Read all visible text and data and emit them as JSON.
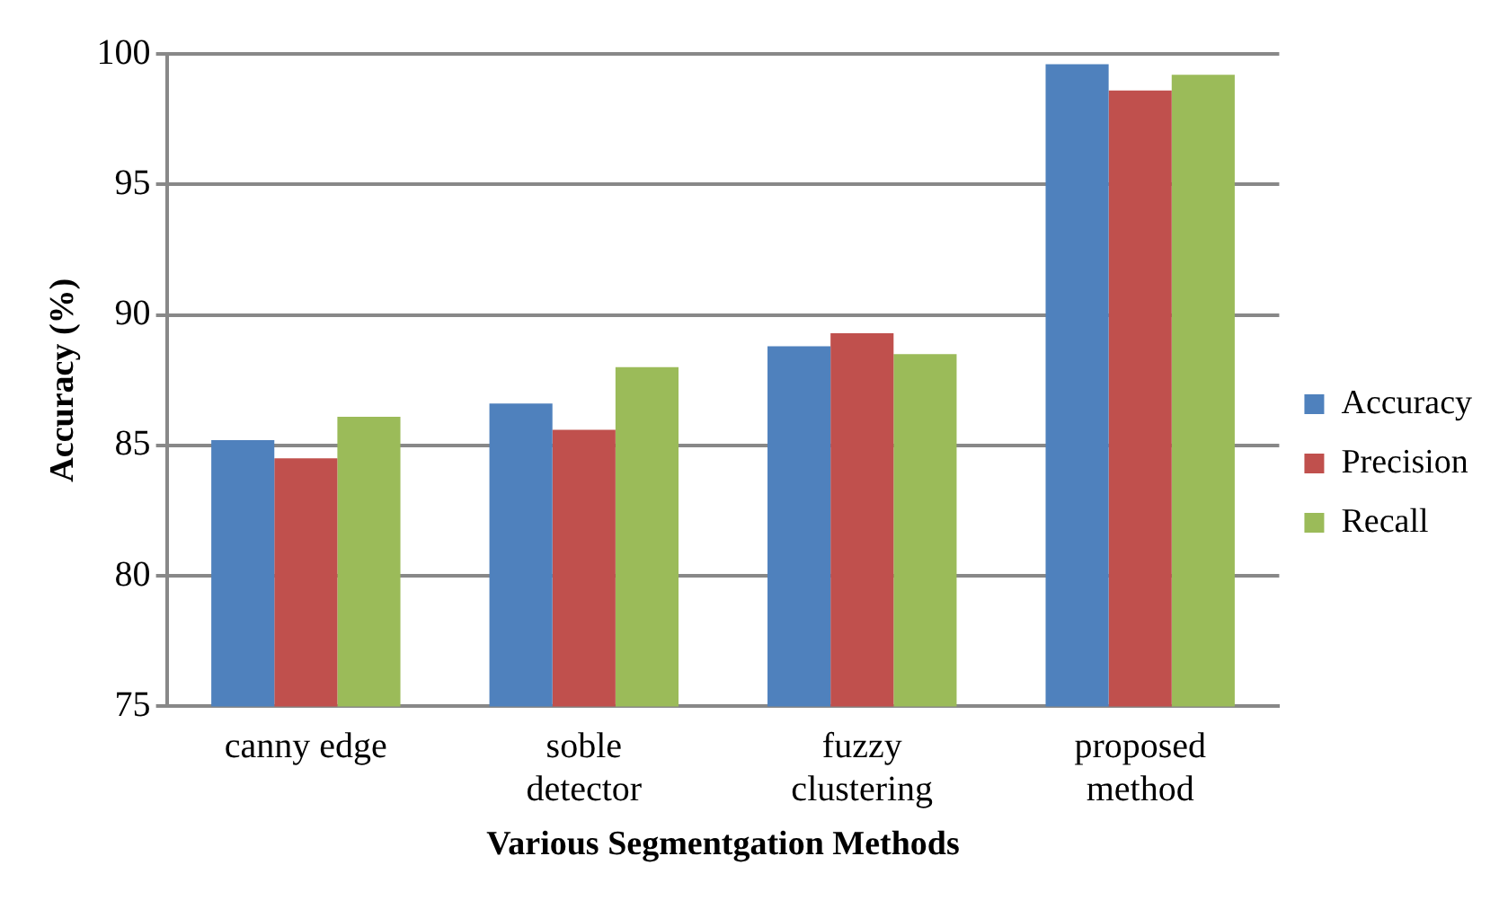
{
  "chart_data": {
    "type": "bar",
    "xlabel": "Various Segmentgation Methods",
    "ylabel": "Accuracy (%)",
    "categories": [
      [
        "canny edge"
      ],
      [
        "soble",
        "detector"
      ],
      [
        "fuzzy",
        "clustering"
      ],
      [
        "proposed",
        "method"
      ]
    ],
    "series": [
      {
        "name": "Accuracy",
        "color": "#4f81bd",
        "values": [
          85.2,
          86.6,
          88.8,
          99.6
        ]
      },
      {
        "name": "Precision",
        "color": "#c0504d",
        "values": [
          84.5,
          85.6,
          89.3,
          98.6
        ]
      },
      {
        "name": "Recall",
        "color": "#9bbb59",
        "values": [
          86.1,
          88.0,
          88.5,
          99.2
        ]
      }
    ],
    "ylim": [
      75,
      100
    ],
    "yticks": [
      75,
      80,
      85,
      90,
      95,
      100
    ],
    "grid": "y",
    "legend": "right"
  }
}
